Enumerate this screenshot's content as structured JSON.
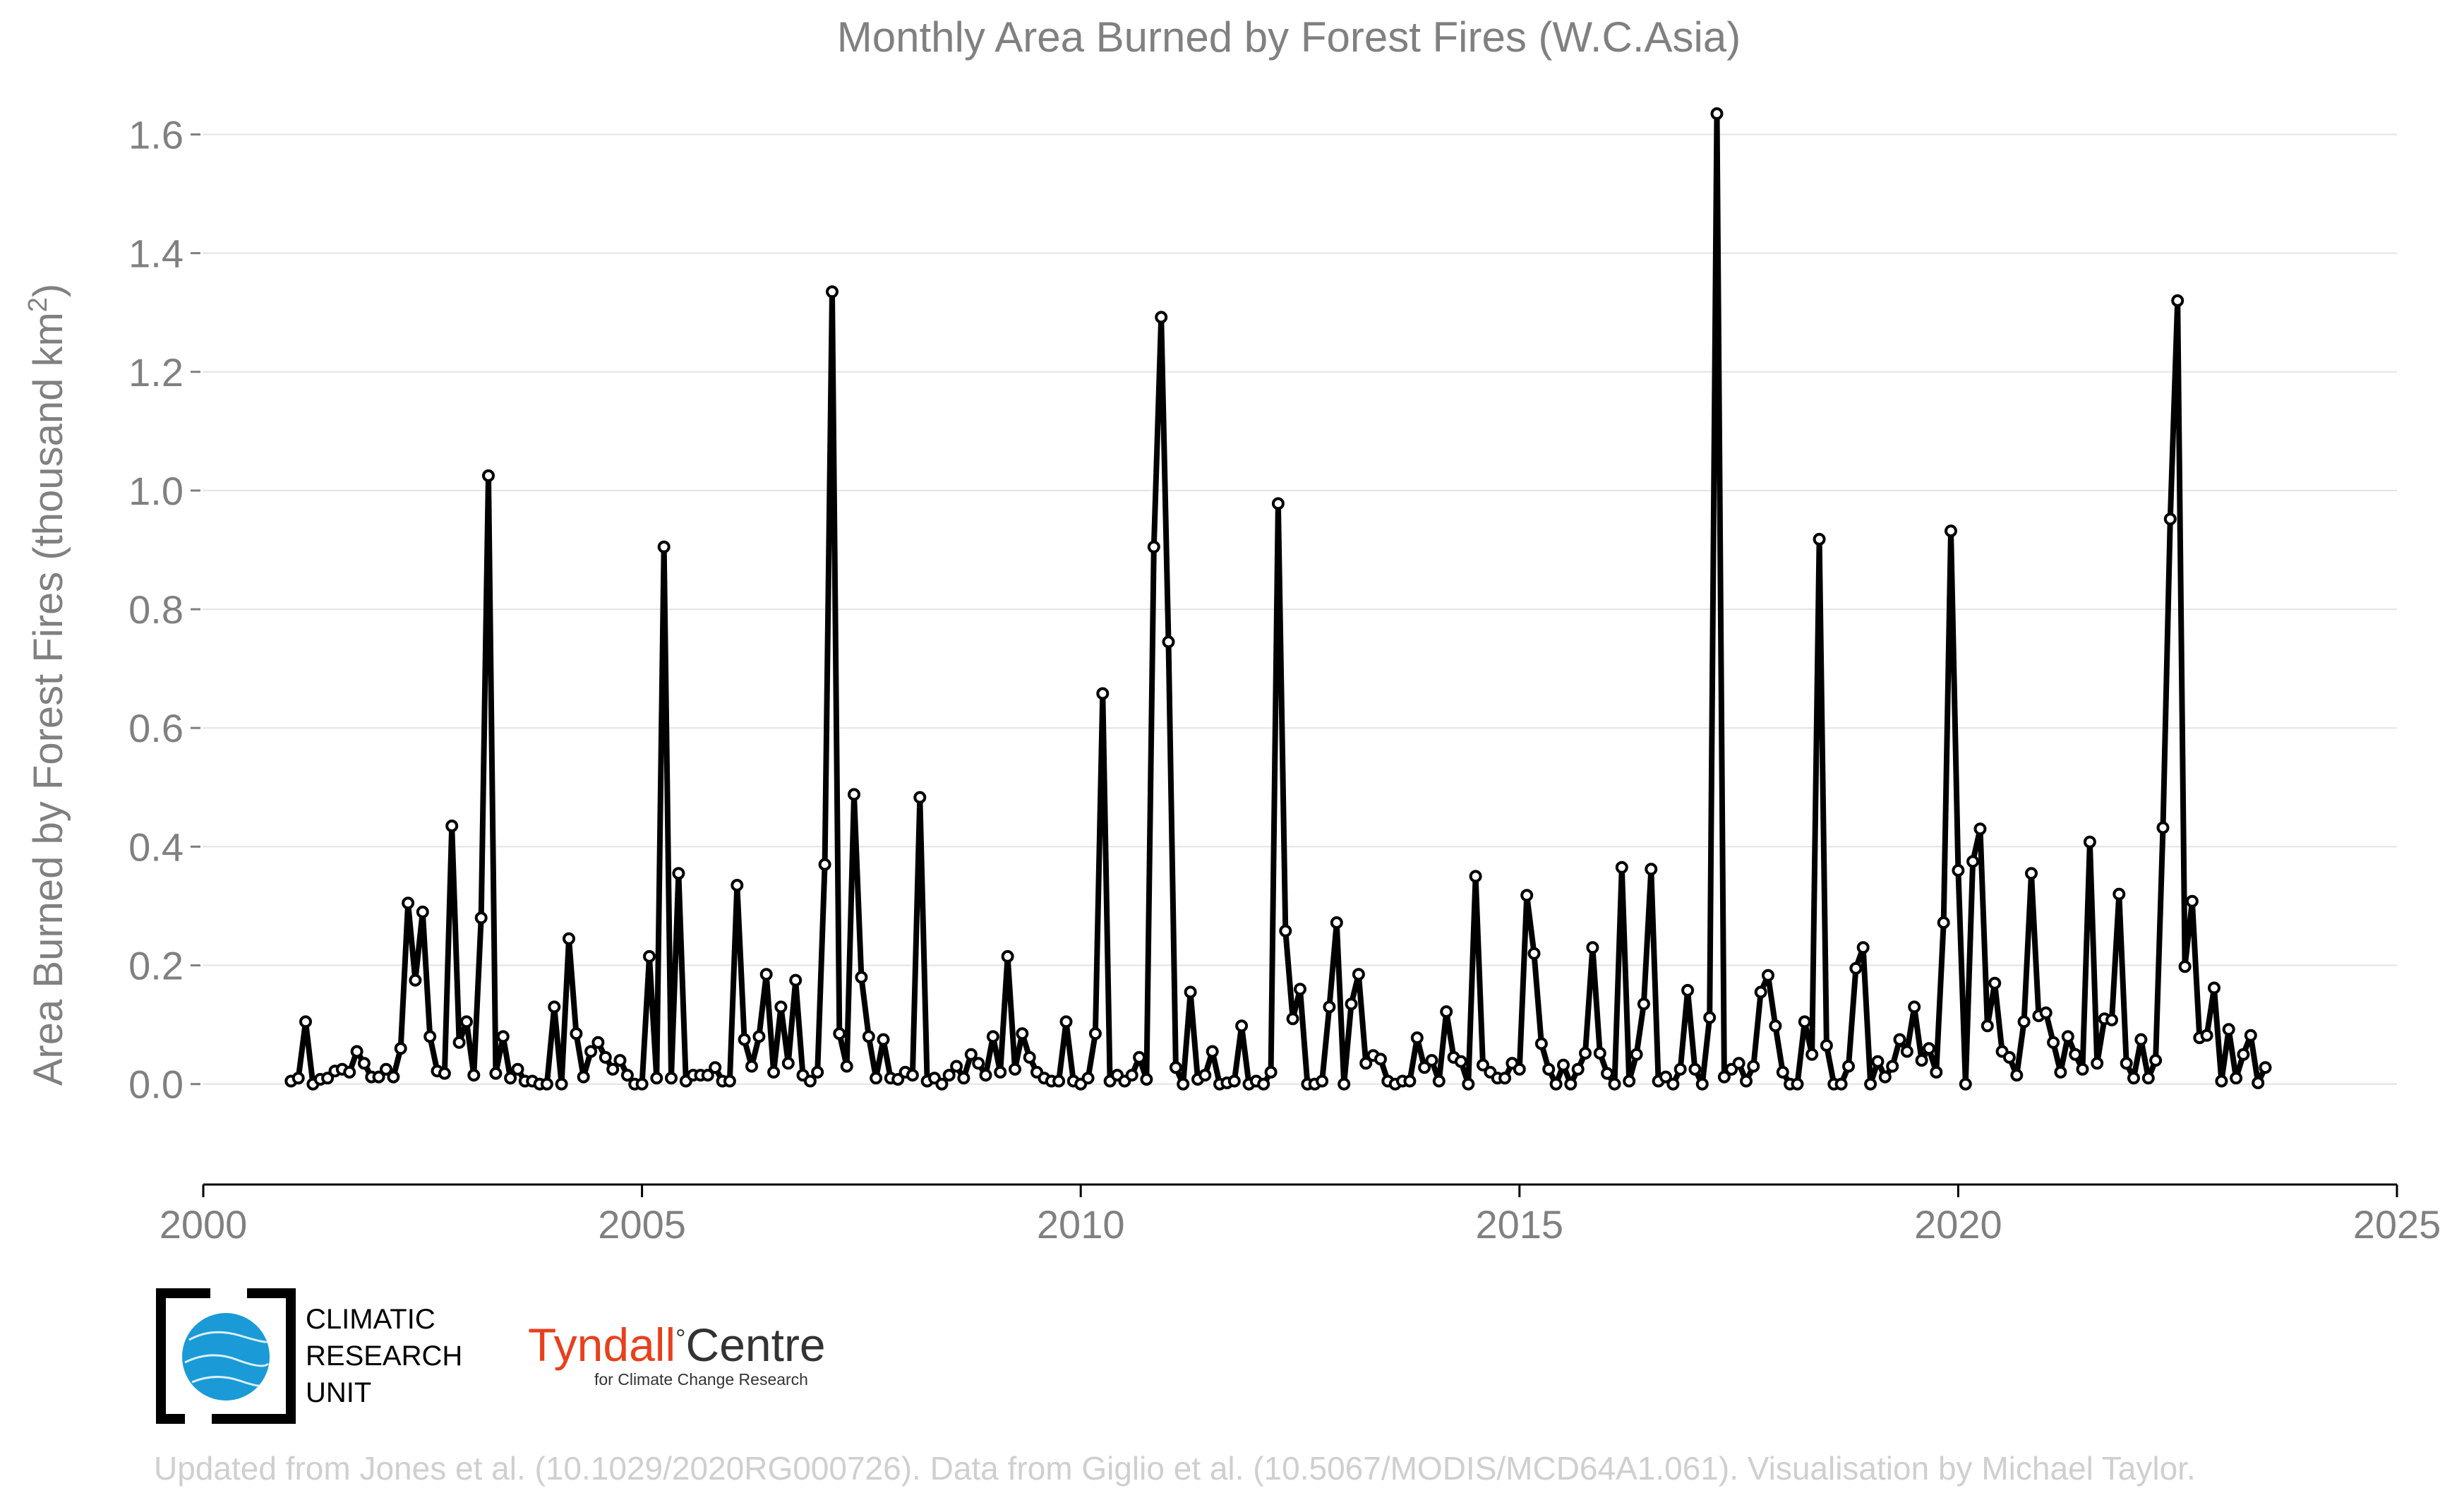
{
  "chart_data": {
    "type": "line",
    "title": "Monthly Area Burned by Forest Fires (W.C.Asia)",
    "ylabel_main": "Area Burned by Forest Fires (thousand km",
    "ylabel_sup": "2",
    "ylabel_close": ")",
    "xlabel": "",
    "xlim": [
      2000,
      2025
    ],
    "ylim": [
      -0.13,
      1.66
    ],
    "xticks": [
      "2000",
      "2005",
      "2010",
      "2015",
      "2020",
      "2025"
    ],
    "yticks": [
      "0.0",
      "0.2",
      "0.4",
      "0.6",
      "0.8",
      "1.0",
      "1.2",
      "1.4",
      "1.6"
    ],
    "grid": "horizontal",
    "line_color": "#000000",
    "start": "2001-01",
    "frequency": "monthly",
    "series": [
      {
        "values": [
          0.005,
          0.01,
          0.105,
          0.0,
          0.008,
          0.01,
          0.022,
          0.025,
          0.02,
          0.055,
          0.035,
          0.012,
          0.012,
          0.025,
          0.012,
          0.06,
          0.305,
          0.175,
          0.29,
          0.08,
          0.022,
          0.018,
          0.435,
          0.07,
          0.105,
          0.015,
          0.28,
          1.025,
          0.018,
          0.08,
          0.01,
          0.025,
          0.005,
          0.005,
          0.0,
          0.0,
          0.13,
          0.0,
          0.245,
          0.085,
          0.012,
          0.055,
          0.07,
          0.045,
          0.025,
          0.04,
          0.015,
          0.0,
          0.0,
          0.215,
          0.01,
          0.905,
          0.01,
          0.355,
          0.005,
          0.015,
          0.015,
          0.015,
          0.028,
          0.005,
          0.005,
          0.335,
          0.075,
          0.03,
          0.08,
          0.185,
          0.02,
          0.13,
          0.035,
          0.175,
          0.015,
          0.005,
          0.02,
          0.37,
          1.335,
          0.085,
          0.03,
          0.488,
          0.18,
          0.08,
          0.01,
          0.075,
          0.01,
          0.008,
          0.02,
          0.015,
          0.483,
          0.005,
          0.01,
          0.0,
          0.015,
          0.03,
          0.01,
          0.05,
          0.035,
          0.015,
          0.08,
          0.02,
          0.215,
          0.025,
          0.085,
          0.045,
          0.02,
          0.01,
          0.005,
          0.005,
          0.105,
          0.005,
          0.0,
          0.01,
          0.085,
          0.658,
          0.005,
          0.015,
          0.005,
          0.015,
          0.045,
          0.008,
          0.905,
          1.292,
          0.745,
          0.028,
          0.0,
          0.155,
          0.008,
          0.015,
          0.055,
          0.0,
          0.002,
          0.005,
          0.098,
          0.0,
          0.005,
          0.0,
          0.02,
          0.978,
          0.258,
          0.11,
          0.16,
          0.0,
          0.0,
          0.005,
          0.13,
          0.272,
          0.0,
          0.135,
          0.185,
          0.035,
          0.048,
          0.042,
          0.005,
          0.0,
          0.005,
          0.005,
          0.078,
          0.028,
          0.04,
          0.005,
          0.122,
          0.045,
          0.038,
          0.0,
          0.35,
          0.032,
          0.02,
          0.01,
          0.01,
          0.035,
          0.025,
          0.318,
          0.22,
          0.068,
          0.025,
          0.0,
          0.032,
          0.0,
          0.025,
          0.052,
          0.23,
          0.052,
          0.018,
          0.0,
          0.365,
          0.005,
          0.05,
          0.135,
          0.362,
          0.005,
          0.012,
          0.0,
          0.025,
          0.158,
          0.025,
          0.0,
          0.112,
          1.635,
          0.012,
          0.025,
          0.035,
          0.005,
          0.03,
          0.155,
          0.183,
          0.098,
          0.02,
          0.0,
          0.0,
          0.105,
          0.05,
          0.918,
          0.065,
          0.0,
          0.0,
          0.03,
          0.195,
          0.23,
          0.0,
          0.038,
          0.012,
          0.03,
          0.075,
          0.055,
          0.13,
          0.04,
          0.06,
          0.02,
          0.272,
          0.932,
          0.36,
          0.0,
          0.375,
          0.43,
          0.098,
          0.17,
          0.055,
          0.045,
          0.015,
          0.105,
          0.355,
          0.115,
          0.12,
          0.07,
          0.02,
          0.08,
          0.05,
          0.025,
          0.408,
          0.035,
          0.11,
          0.108,
          0.32,
          0.035,
          0.01,
          0.075,
          0.01,
          0.04,
          0.432,
          0.952,
          1.32,
          0.198,
          0.308,
          0.078,
          0.082,
          0.162,
          0.005,
          0.092,
          0.01,
          0.05,
          0.082,
          0.002,
          0.028
        ]
      }
    ]
  },
  "logos": {
    "cru_line1": "CLIMATIC",
    "cru_line2": "RESEARCH",
    "cru_line3": "UNIT",
    "tyndall_name": "Tyndall",
    "tyndall_degree": "°",
    "tyndall_centre": "Centre",
    "tyndall_sub": "for Climate Change Research",
    "tyndall_color": "#e8401c",
    "cru_globe_color": "#1a9bd7"
  },
  "footer": {
    "credit": "Updated from Jones et al. (10.1029/2020RG000726). Data from Giglio et al. (10.5067/MODIS/MCD64A1.061). Visualisation by Michael Taylor."
  }
}
